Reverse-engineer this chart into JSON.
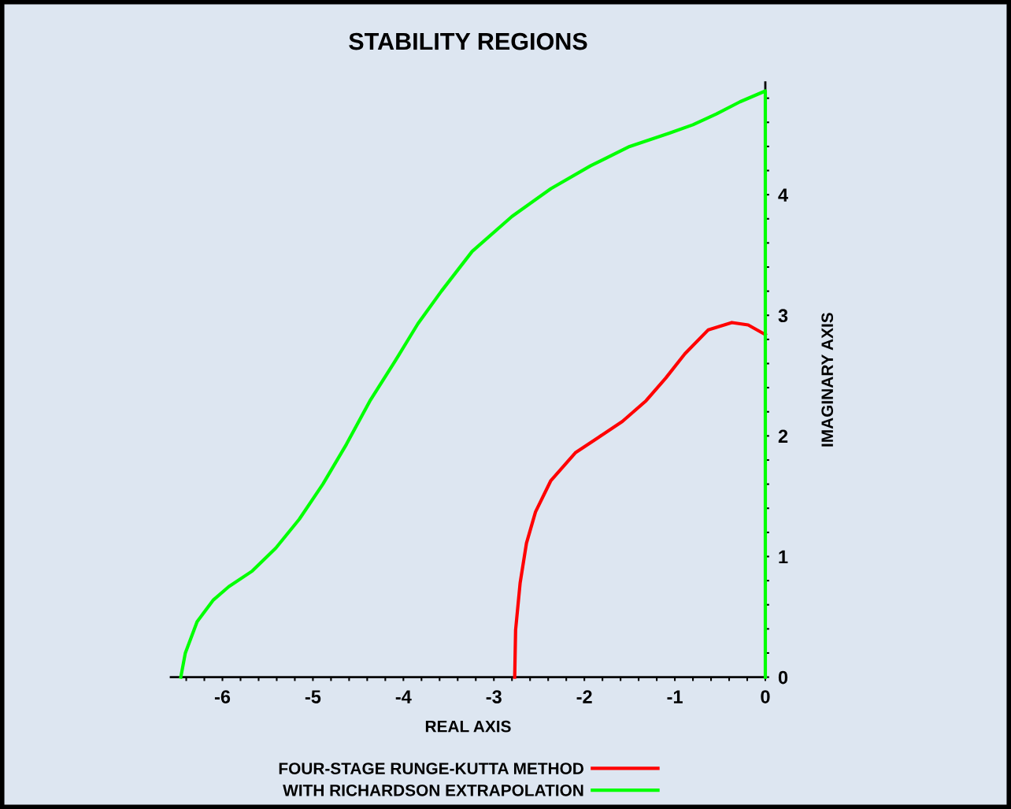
{
  "chart_data": {
    "type": "line",
    "title": "STABILITY REGIONS",
    "xlabel": "REAL AXIS",
    "ylabel": "IMAGINARY AXIS",
    "series": [
      {
        "name": "FOUR-STAGE RUNGE-KUTTA METHOD",
        "color": "#ff0000",
        "x": [
          -2.77,
          -2.76,
          -2.71,
          -2.64,
          -2.54,
          -2.37,
          -2.1,
          -1.84,
          -1.58,
          -1.32,
          -1.1,
          -0.89,
          -0.63,
          -0.37,
          -0.19,
          0
        ],
        "values": [
          0,
          0.39,
          0.78,
          1.11,
          1.37,
          1.63,
          1.86,
          1.99,
          2.12,
          2.29,
          2.48,
          2.68,
          2.88,
          2.94,
          2.92,
          2.84
        ]
      },
      {
        "name": "WITH RICHARDSON EXTRAPOLATION",
        "color": "#00ff00",
        "x": [
          -6.46,
          -6.41,
          -6.28,
          -6.1,
          -5.93,
          -5.67,
          -5.41,
          -5.15,
          -4.89,
          -4.63,
          -4.37,
          -4.1,
          -3.84,
          -3.58,
          -3.24,
          -2.8,
          -2.37,
          -1.93,
          -1.5,
          -1.06,
          -0.8,
          -0.54,
          -0.28,
          0,
          0
        ],
        "values": [
          0,
          0.2,
          0.46,
          0.64,
          0.75,
          0.88,
          1.07,
          1.31,
          1.6,
          1.93,
          2.29,
          2.61,
          2.93,
          3.2,
          3.53,
          3.82,
          4.05,
          4.24,
          4.4,
          4.51,
          4.58,
          4.67,
          4.77,
          4.86,
          0
        ]
      }
    ],
    "xlim": [
      -6.57,
      0
    ],
    "ylim": [
      0,
      4.93
    ],
    "xticks": [
      -6,
      -5,
      -4,
      -3,
      -2,
      -1,
      0,
      {
        "value": -6.4,
        "label": null
      },
      {
        "value": -6.2,
        "label": null
      },
      {
        "value": -5.8,
        "label": null
      },
      {
        "value": -5.6,
        "label": null
      },
      {
        "value": -5.4,
        "label": null
      },
      {
        "value": -5.2,
        "label": null
      },
      {
        "value": -4.8,
        "label": null
      },
      {
        "value": -4.6,
        "label": null
      },
      {
        "value": -4.4,
        "label": null
      },
      {
        "value": -4.2,
        "label": null
      },
      {
        "value": -3.8,
        "label": null
      },
      {
        "value": -3.6,
        "label": null
      },
      {
        "value": -3.4,
        "label": null
      },
      {
        "value": -3.2,
        "label": null
      },
      {
        "value": -2.8,
        "label": null
      },
      {
        "value": -2.6,
        "label": null
      },
      {
        "value": -2.4,
        "label": null
      },
      {
        "value": -2.2,
        "label": null
      },
      {
        "value": -1.8,
        "label": null
      },
      {
        "value": -1.6,
        "label": null
      },
      {
        "value": -1.4,
        "label": null
      },
      {
        "value": -1.2,
        "label": null
      },
      {
        "value": -0.8,
        "label": null
      },
      {
        "value": -0.6,
        "label": null
      },
      {
        "value": -0.4,
        "label": null
      },
      {
        "value": -0.2,
        "label": null
      }
    ],
    "yticks": [
      0,
      1,
      2,
      3,
      4,
      {
        "value": 0.2,
        "label": null
      },
      {
        "value": 0.4,
        "label": null
      },
      {
        "value": 0.6,
        "label": null
      },
      {
        "value": 0.8,
        "label": null
      },
      {
        "value": 1.2,
        "label": null
      },
      {
        "value": 1.4,
        "label": null
      },
      {
        "value": 1.6,
        "label": null
      },
      {
        "value": 1.8,
        "label": null
      },
      {
        "value": 2.2,
        "label": null
      },
      {
        "value": 2.4,
        "label": null
      },
      {
        "value": 2.6,
        "label": null
      },
      {
        "value": 2.8,
        "label": null
      },
      {
        "value": 3.2,
        "label": null
      },
      {
        "value": 3.4,
        "label": null
      },
      {
        "value": 3.6,
        "label": null
      },
      {
        "value": 3.8,
        "label": null
      },
      {
        "value": 4.2,
        "label": null
      },
      {
        "value": 4.4,
        "label": null
      },
      {
        "value": 4.6,
        "label": null
      },
      {
        "value": 4.8,
        "label": null
      }
    ],
    "grid": false,
    "legend": "bottom",
    "marker": "none",
    "line_style": "solid"
  }
}
